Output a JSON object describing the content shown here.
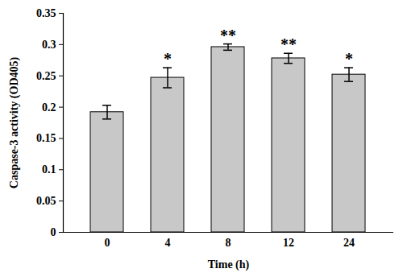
{
  "chart_data": {
    "type": "bar",
    "x_label": "Time (h)",
    "y_label": "Caspase-3 activity (OD405)",
    "categories": [
      "0",
      "4",
      "8",
      "12",
      "24"
    ],
    "values": [
      0.192,
      0.247,
      0.296,
      0.278,
      0.252
    ],
    "errors": [
      0.011,
      0.016,
      0.005,
      0.008,
      0.011
    ],
    "annotations": [
      "",
      "*",
      "**",
      "**",
      "*"
    ],
    "color": "#c8c8c8",
    "ylim": [
      0,
      0.35
    ],
    "yticks": [
      0,
      0.05,
      0.1,
      0.15,
      0.2,
      0.25,
      0.3,
      0.35
    ],
    "grid": false
  }
}
